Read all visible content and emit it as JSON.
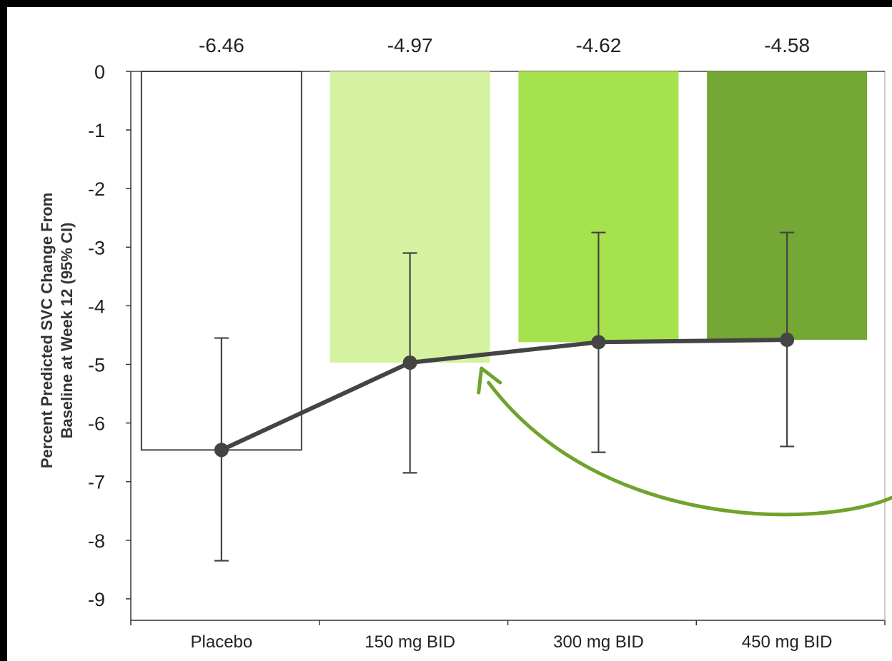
{
  "chart_data": {
    "type": "bar",
    "title": "",
    "xlabel": "",
    "ylabel_lines": [
      "Percent Predicted SVC Change From",
      "Baseline at Week 12 (95% CI)"
    ],
    "categories": [
      "Placebo",
      "150 mg BID",
      "300 mg BID",
      "450 mg BID"
    ],
    "value_labels": [
      "-6.46",
      "-4.97",
      "-4.62",
      "-4.58"
    ],
    "values": [
      -6.46,
      -4.97,
      -4.62,
      -4.58
    ],
    "ci_lower": [
      -8.35,
      -6.85,
      -6.5,
      -6.4
    ],
    "ci_upper": [
      -4.55,
      -3.1,
      -2.75,
      -2.75
    ],
    "ylim": [
      -10,
      0
    ],
    "yticks": [
      0,
      -1,
      -2,
      -3,
      -4,
      -5,
      -6,
      -7,
      -8,
      -9
    ],
    "bar_colors": [
      "#ffffff",
      "#d5f2a0",
      "#a6e14e",
      "#74a733"
    ],
    "bar_outline_color": "#444444",
    "line_color": "#444444",
    "arrow_color": "#6fa32c",
    "grid": false,
    "legend": "none"
  }
}
